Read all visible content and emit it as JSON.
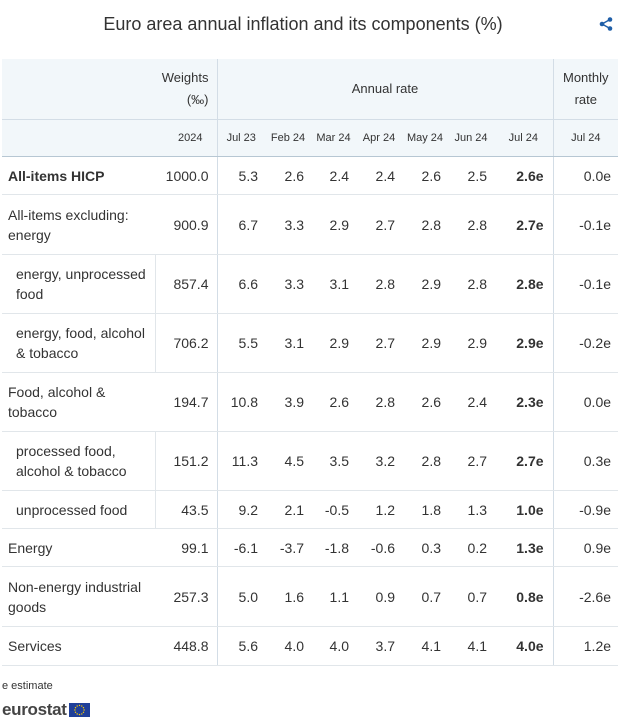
{
  "title": "Euro area annual inflation and its components (%)",
  "colors": {
    "header_bg": "#f2f7fa",
    "border": "#d3dde6",
    "flag": "#1f3f99",
    "stars": "#ffcc00"
  },
  "header": {
    "weights": "Weights",
    "weights_unit": "(‰)",
    "annual_rate": "Annual rate",
    "monthly": "Monthly",
    "monthly_rate": "rate",
    "subheaders": [
      "2024",
      "Jul 23",
      "Feb 24",
      "Mar 24",
      "Apr 24",
      "May 24",
      "Jun 24",
      "Jul 24",
      "Jul 24"
    ]
  },
  "rows": [
    {
      "label": "All-items HICP",
      "values": [
        "1000.0",
        "5.3",
        "2.6",
        "2.4",
        "2.4",
        "2.6",
        "2.5",
        "2.6e",
        "0.0e"
      ]
    },
    {
      "label": "All-items excluding: energy",
      "values": [
        "900.9",
        "6.7",
        "3.3",
        "2.9",
        "2.7",
        "2.8",
        "2.8",
        "2.7e",
        "-0.1e"
      ]
    },
    {
      "label": "energy, unprocessed food",
      "values": [
        "857.4",
        "6.6",
        "3.3",
        "3.1",
        "2.8",
        "2.9",
        "2.8",
        "2.8e",
        "-0.1e"
      ]
    },
    {
      "label": "energy, food, alcohol & tobacco",
      "values": [
        "706.2",
        "5.5",
        "3.1",
        "2.9",
        "2.7",
        "2.9",
        "2.9",
        "2.9e",
        "-0.2e"
      ]
    },
    {
      "label": "Food, alcohol & tobacco",
      "values": [
        "194.7",
        "10.8",
        "3.9",
        "2.6",
        "2.8",
        "2.6",
        "2.4",
        "2.3e",
        "0.0e"
      ]
    },
    {
      "label": "processed food, alcohol & tobacco",
      "values": [
        "151.2",
        "11.3",
        "4.5",
        "3.5",
        "3.2",
        "2.8",
        "2.7",
        "2.7e",
        "0.3e"
      ]
    },
    {
      "label": "unprocessed food",
      "values": [
        "43.5",
        "9.2",
        "2.1",
        "-0.5",
        "1.2",
        "1.8",
        "1.3",
        "1.0e",
        "-0.9e"
      ]
    },
    {
      "label": "Energy",
      "values": [
        "99.1",
        "-6.1",
        "-3.7",
        "-1.8",
        "-0.6",
        "0.3",
        "0.2",
        "1.3e",
        "0.9e"
      ]
    },
    {
      "label": "Non-energy industrial goods",
      "values": [
        "257.3",
        "5.0",
        "1.6",
        "1.1",
        "0.9",
        "0.7",
        "0.7",
        "0.8e",
        "-2.6e"
      ]
    },
    {
      "label": "Services",
      "values": [
        "448.8",
        "5.6",
        "4.0",
        "4.0",
        "3.7",
        "4.1",
        "4.1",
        "4.0e",
        "1.2e"
      ]
    }
  ],
  "footnote": "e estimate",
  "logo": "eurostat",
  "icons": {
    "share": "share-icon"
  }
}
